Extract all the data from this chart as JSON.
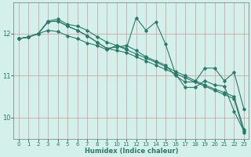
{
  "xlabel": "Humidex (Indice chaleur)",
  "bg_color": "#d4f0ea",
  "grid_color": "#b0d8d0",
  "line_color": "#2a7a6a",
  "spine_color": "#888888",
  "xlim": [
    -0.5,
    23.5
  ],
  "ylim": [
    9.5,
    12.75
  ],
  "yticks": [
    10,
    11,
    12
  ],
  "xticks": [
    0,
    1,
    2,
    3,
    4,
    5,
    6,
    7,
    8,
    9,
    10,
    11,
    12,
    13,
    14,
    15,
    16,
    17,
    18,
    19,
    20,
    21,
    22,
    23
  ],
  "series": [
    [
      11.88,
      11.92,
      12.0,
      12.3,
      12.35,
      12.22,
      12.18,
      12.08,
      11.93,
      11.8,
      11.72,
      11.62,
      11.52,
      11.42,
      11.32,
      11.22,
      11.1,
      11.0,
      10.88,
      10.78,
      10.68,
      10.6,
      10.5,
      9.72
    ],
    [
      11.88,
      11.92,
      12.0,
      12.08,
      12.05,
      11.95,
      11.88,
      11.78,
      11.72,
      11.62,
      11.72,
      11.65,
      12.38,
      12.08,
      12.28,
      11.75,
      11.05,
      10.72,
      10.72,
      10.88,
      10.78,
      10.75,
      10.15,
      9.68
    ],
    [
      11.88,
      11.92,
      12.0,
      12.28,
      12.3,
      12.18,
      12.08,
      11.95,
      11.8,
      11.65,
      11.68,
      11.72,
      11.6,
      11.45,
      11.35,
      11.25,
      11.0,
      10.85,
      10.85,
      11.18,
      11.18,
      10.88,
      11.08,
      10.2
    ],
    [
      11.88,
      11.92,
      12.0,
      12.28,
      12.3,
      12.18,
      12.08,
      11.95,
      11.8,
      11.65,
      11.6,
      11.55,
      11.45,
      11.35,
      11.25,
      11.15,
      11.05,
      10.95,
      10.85,
      10.75,
      10.65,
      10.55,
      10.45,
      9.65
    ]
  ]
}
